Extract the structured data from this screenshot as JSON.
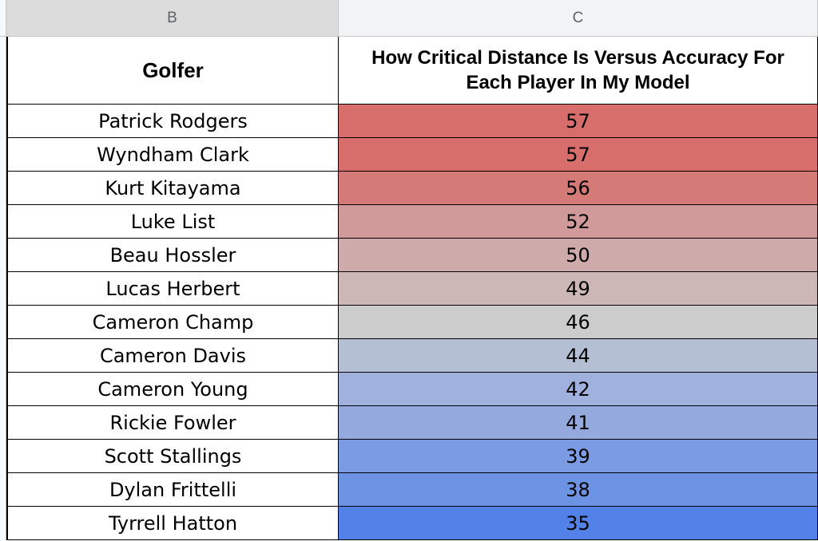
{
  "columns": {
    "b_letter": "B",
    "c_letter": "C"
  },
  "header": {
    "golfer": "Golfer",
    "metric": "How Critical Distance Is Versus Accuracy For Each Player In My Model"
  },
  "colors": {
    "scale_high": "#d76e6b",
    "scale_mid": "#cccccc",
    "scale_low": "#5281e8"
  },
  "rows": [
    {
      "golfer": "Patrick Rodgers",
      "value": "57",
      "color": "#d76e6b"
    },
    {
      "golfer": "Wyndham Clark",
      "value": "57",
      "color": "#d76e6b"
    },
    {
      "golfer": "Kurt Kitayama",
      "value": "56",
      "color": "#d47a77"
    },
    {
      "golfer": "Luke List",
      "value": "52",
      "color": "#d19a9a"
    },
    {
      "golfer": "Beau Hossler",
      "value": "50",
      "color": "#cfaaaa"
    },
    {
      "golfer": "Lucas Herbert",
      "value": "49",
      "color": "#cdb6b6"
    },
    {
      "golfer": "Cameron Champ",
      "value": "46",
      "color": "#cccccc"
    },
    {
      "golfer": "Cameron Davis",
      "value": "44",
      "color": "#b4bfd3"
    },
    {
      "golfer": "Cameron Young",
      "value": "42",
      "color": "#9fb1dc"
    },
    {
      "golfer": "Rickie Fowler",
      "value": "41",
      "color": "#94a9dd"
    },
    {
      "golfer": "Scott Stallings",
      "value": "39",
      "color": "#7b9ce4"
    },
    {
      "golfer": "Dylan Frittelli",
      "value": "38",
      "color": "#6d93e5"
    },
    {
      "golfer": "Tyrrell Hatton",
      "value": "35",
      "color": "#5281e8"
    }
  ]
}
